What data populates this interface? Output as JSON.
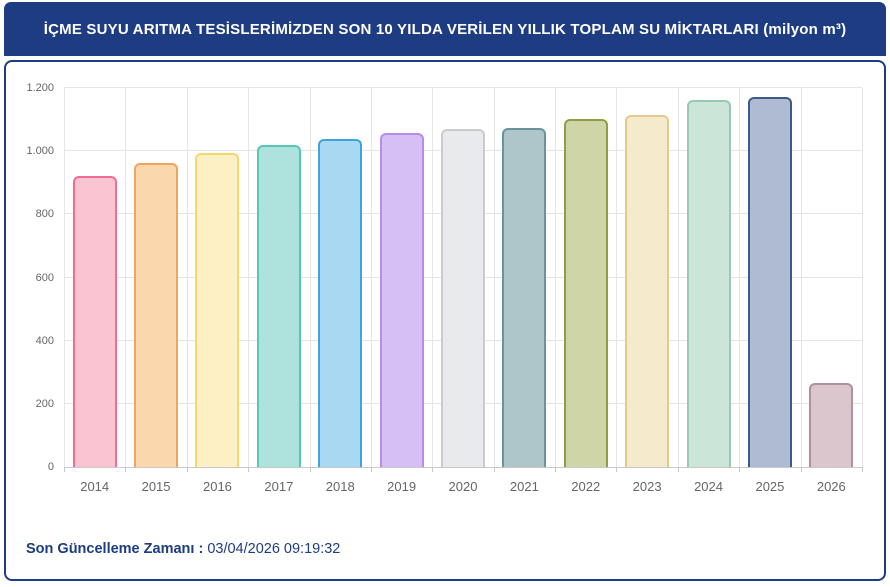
{
  "header": {
    "title": "İÇME SUYU ARITMA TESİSLERİMİZDEN SON 10 YILDA VERİLEN YILLIK TOPLAM SU MİKTARLARI (milyon m³)",
    "background_color": "#1d3c82"
  },
  "chart_data": {
    "type": "bar",
    "title": "İÇME SUYU ARITMA TESİSLERİMİZDEN SON 10 YILDA VERİLEN YILLIK TOPLAM SU MİKTARLARI (milyon m³)",
    "xlabel": "",
    "ylabel": "",
    "categories": [
      "2014",
      "2015",
      "2016",
      "2017",
      "2018",
      "2019",
      "2020",
      "2021",
      "2022",
      "2023",
      "2024",
      "2025",
      "2026"
    ],
    "values": [
      921,
      962,
      994,
      1020,
      1038,
      1057,
      1070,
      1073,
      1102,
      1114,
      1162,
      1171,
      266
    ],
    "ylim": [
      0,
      1200
    ],
    "ytick_step": 200,
    "ytick_labels": [
      "0",
      "200",
      "400",
      "600",
      "800",
      "1.000",
      "1.200"
    ],
    "grid": true,
    "legend_position": "none",
    "bar_colors": [
      {
        "fill": "#fac4d2",
        "border": "#f16c97"
      },
      {
        "fill": "#fbd7ad",
        "border": "#f2a45a"
      },
      {
        "fill": "#fdf0c5",
        "border": "#f6d66e"
      },
      {
        "fill": "#ade3dc",
        "border": "#58c5b9"
      },
      {
        "fill": "#a9d8f3",
        "border": "#3fa3de"
      },
      {
        "fill": "#d5bff5",
        "border": "#b78ceb"
      },
      {
        "fill": "#e9eaec",
        "border": "#c9cbd0"
      },
      {
        "fill": "#aec6ca",
        "border": "#6a939b"
      },
      {
        "fill": "#cfd5a7",
        "border": "#8e9e45"
      },
      {
        "fill": "#f6eacc",
        "border": "#e4c98f"
      },
      {
        "fill": "#cbe5d9",
        "border": "#97c9b3"
      },
      {
        "fill": "#aebbd3",
        "border": "#3d5a89"
      },
      {
        "fill": "#dcc6cd",
        "border": "#b2909b"
      }
    ],
    "grid_color": "#e5e5e5",
    "axis_color": "#c9c9c9",
    "label_color": "#666666"
  },
  "footer": {
    "label": "Son Güncelleme Zamanı",
    "separator": " : ",
    "value": "03/04/2026 09:19:32"
  }
}
